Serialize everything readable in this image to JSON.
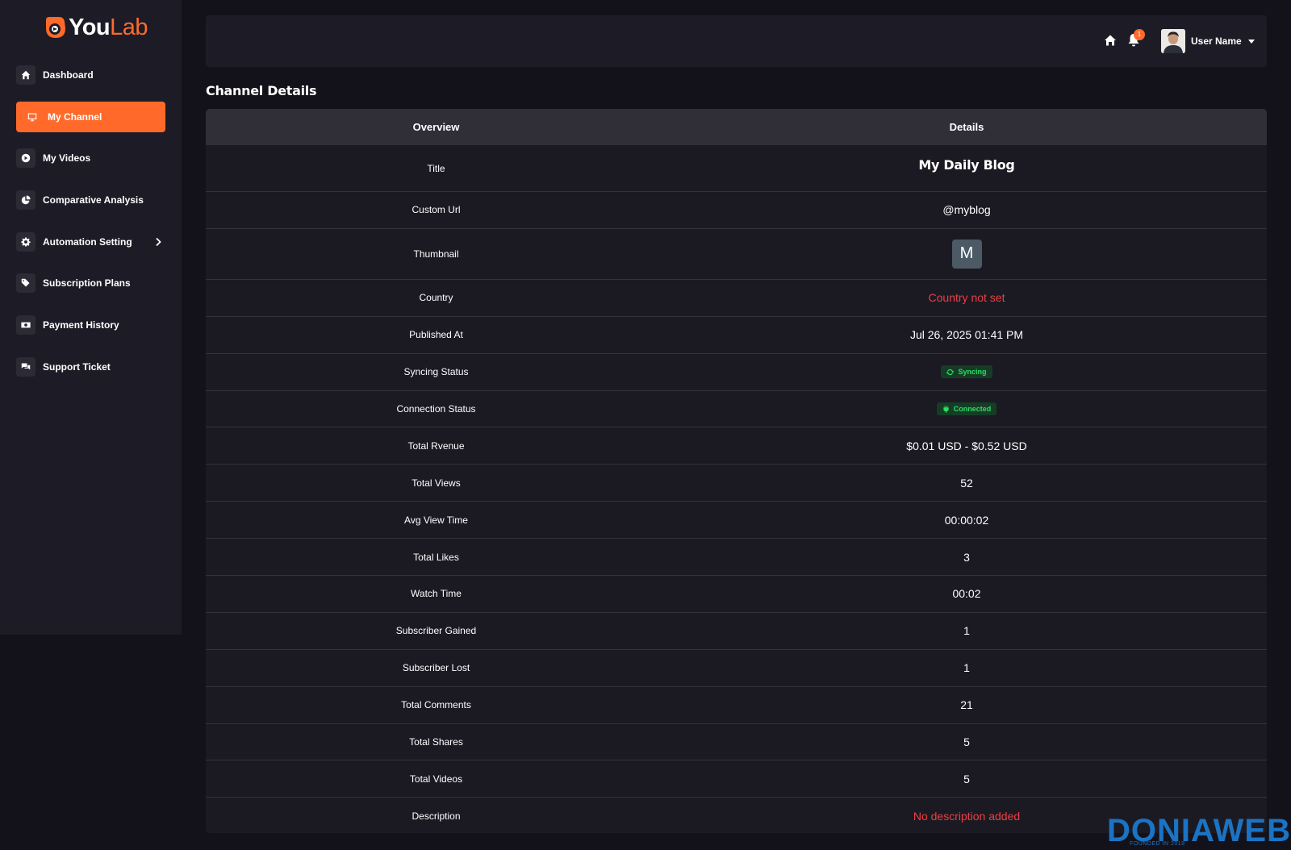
{
  "brand": {
    "you": "You",
    "lab": "Lab",
    "accent": "#ff6a2b"
  },
  "sidebar": {
    "items": [
      {
        "label": "Dashboard",
        "icon": "home-icon"
      },
      {
        "label": "My Channel",
        "icon": "monitor-icon",
        "active": true
      },
      {
        "label": "My Videos",
        "icon": "play-circle-icon"
      },
      {
        "label": "Comparative Analysis",
        "icon": "pie-chart-icon"
      },
      {
        "label": "Automation Setting",
        "icon": "gear-icon",
        "submenu": true
      },
      {
        "label": "Subscription Plans",
        "icon": "tags-icon"
      },
      {
        "label": "Payment History",
        "icon": "money-bill-icon"
      },
      {
        "label": "Support Ticket",
        "icon": "comments-icon"
      }
    ]
  },
  "header": {
    "notification_count": "1",
    "user_name": "User Name"
  },
  "page": {
    "title": "Channel Details"
  },
  "table": {
    "headers": {
      "overview": "Overview",
      "details": "Details"
    },
    "rows": {
      "title": {
        "label": "Title",
        "value": "My Daily Blog"
      },
      "custom_url": {
        "label": "Custom Url",
        "value": "@myblog"
      },
      "thumbnail": {
        "label": "Thumbnail",
        "value": "M"
      },
      "country": {
        "label": "Country",
        "value": "Country not set"
      },
      "published_at": {
        "label": "Published At",
        "value": "Jul 26, 2025 01:41 PM"
      },
      "syncing_status": {
        "label": "Syncing Status",
        "value": "Syncing"
      },
      "connection_status": {
        "label": "Connection Status",
        "value": "Connected"
      },
      "total_revenue": {
        "label": "Total Rvenue",
        "value": "$0.01 USD - $0.52 USD"
      },
      "total_views": {
        "label": "Total Views",
        "value": "52"
      },
      "avg_view_time": {
        "label": "Avg View Time",
        "value": "00:00:02"
      },
      "total_likes": {
        "label": "Total Likes",
        "value": "3"
      },
      "watch_time": {
        "label": "Watch Time",
        "value": "00:02"
      },
      "subscriber_gained": {
        "label": "Subscriber Gained",
        "value": "1"
      },
      "subscriber_lost": {
        "label": "Subscriber Lost",
        "value": "1"
      },
      "total_comments": {
        "label": "Total Comments",
        "value": "21"
      },
      "total_shares": {
        "label": "Total Shares",
        "value": "5"
      },
      "total_videos": {
        "label": "Total Videos",
        "value": "5"
      },
      "description": {
        "label": "Description",
        "value": "No description added"
      }
    }
  },
  "watermark": {
    "text": "DONIAWEB",
    "sub": "FOUNDED IN 2018"
  }
}
